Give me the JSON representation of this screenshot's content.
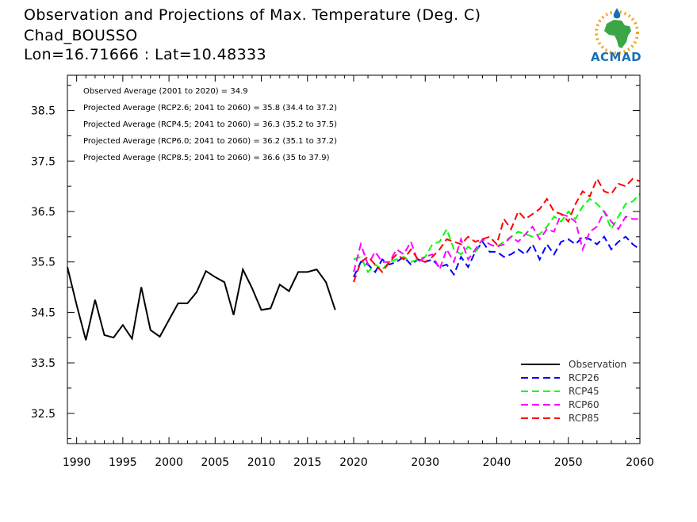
{
  "header": {
    "title_line1": "Observation and Projections of Max. Temperature (Deg. C)",
    "title_line2": "Chad_BOUSSO",
    "title_line3": "Lon=16.71666 : Lat=10.48333",
    "logo_text": "ACMAD"
  },
  "annotations": [
    "Observed Average (2001 to 2020) = 34.9",
    "Projected Average (RCP2.6; 2041 to 2060) = 35.8 (34.4 to 37.2)",
    "Projected Average (RCP4.5; 2041 to 2060) = 36.3 (35.2 to 37.5)",
    "Projected Average (RCP6.0; 2041 to 2060) = 36.2 (35.1 to 37.2)",
    "Projected Average (RCP8.5; 2041 to 2060) = 36.6 (35 to 37.9)"
  ],
  "chart_data": {
    "type": "line",
    "title": "Observation and Projections of Max. Temperature (Deg. C)",
    "xlim": [
      1989,
      2060
    ],
    "ylim": [
      31.9,
      39.2
    ],
    "x_ticks": [
      1990,
      1995,
      2000,
      2005,
      2010,
      2015,
      2020,
      2030,
      2040,
      2050,
      2060
    ],
    "y_ticks": [
      32.5,
      33.5,
      34.5,
      35.5,
      36.5,
      37.5,
      38.5
    ],
    "grid": false,
    "legend_position": "bottom-right",
    "series": [
      {
        "name": "Observation",
        "color": "#000000",
        "dashed": false,
        "x": [
          1989,
          1990,
          1991,
          1992,
          1993,
          1994,
          1995,
          1996,
          1997,
          1998,
          1999,
          2000,
          2001,
          2002,
          2003,
          2004,
          2005,
          2006,
          2007,
          2008,
          2009,
          2010,
          2011,
          2012,
          2013,
          2014,
          2015,
          2016,
          2017,
          2018,
          2019
        ],
        "values": [
          35.4,
          34.65,
          33.95,
          34.75,
          34.05,
          34.0,
          34.25,
          33.98,
          35.0,
          34.15,
          34.02,
          34.35,
          34.68,
          34.68,
          34.9,
          35.32,
          35.2,
          35.1,
          34.45,
          35.35,
          34.98,
          34.55,
          34.58,
          35.05,
          34.92,
          35.3,
          35.3,
          35.35,
          35.1,
          34.55,
          null
        ]
      },
      {
        "name": "RCP26",
        "color": "#0000ff",
        "dashed": true,
        "x": [
          2020,
          2021,
          2022,
          2023,
          2024,
          2025,
          2026,
          2027,
          2028,
          2029,
          2030,
          2031,
          2032,
          2033,
          2034,
          2035,
          2036,
          2037,
          2038,
          2039,
          2040,
          2041,
          2042,
          2043,
          2044,
          2045,
          2046,
          2047,
          2048,
          2049,
          2050,
          2051,
          2052,
          2053,
          2054,
          2055,
          2056,
          2057,
          2058,
          2059,
          2060
        ],
        "values": [
          35.2,
          35.5,
          35.45,
          35.3,
          35.55,
          35.45,
          35.5,
          35.6,
          35.45,
          35.55,
          35.5,
          35.55,
          35.4,
          35.45,
          35.25,
          35.6,
          35.4,
          35.7,
          35.9,
          35.7,
          35.7,
          35.6,
          35.65,
          35.75,
          35.65,
          35.85,
          35.55,
          35.85,
          35.65,
          35.9,
          35.95,
          35.85,
          36.0,
          35.95,
          35.85,
          36.0,
          35.75,
          35.9,
          36.0,
          35.85,
          35.75
        ]
      },
      {
        "name": "RCP45",
        "color": "#00ff00",
        "dashed": true,
        "x": [
          2020,
          2021,
          2022,
          2023,
          2024,
          2025,
          2026,
          2027,
          2028,
          2029,
          2030,
          2031,
          2032,
          2033,
          2034,
          2035,
          2036,
          2037,
          2038,
          2039,
          2040,
          2041,
          2042,
          2043,
          2044,
          2045,
          2046,
          2047,
          2048,
          2049,
          2050,
          2051,
          2052,
          2053,
          2054,
          2055,
          2056,
          2057,
          2058,
          2059,
          2060
        ],
        "values": [
          35.55,
          35.6,
          35.3,
          35.45,
          35.35,
          35.5,
          35.55,
          35.6,
          35.5,
          35.55,
          35.6,
          35.85,
          35.9,
          36.15,
          35.75,
          35.65,
          35.8,
          35.7,
          35.95,
          35.85,
          35.8,
          35.9,
          36.0,
          36.1,
          36.05,
          36.0,
          36.05,
          36.2,
          36.4,
          36.3,
          36.5,
          36.35,
          36.6,
          36.75,
          36.65,
          36.5,
          36.15,
          36.4,
          36.65,
          36.7,
          36.85
        ]
      },
      {
        "name": "RCP60",
        "color": "#ff00ff",
        "dashed": true,
        "x": [
          2020,
          2021,
          2022,
          2023,
          2024,
          2025,
          2026,
          2027,
          2028,
          2029,
          2030,
          2031,
          2032,
          2033,
          2034,
          2035,
          2036,
          2037,
          2038,
          2039,
          2040,
          2041,
          2042,
          2043,
          2044,
          2045,
          2046,
          2047,
          2048,
          2049,
          2050,
          2051,
          2052,
          2053,
          2054,
          2055,
          2056,
          2057,
          2058,
          2059,
          2060
        ],
        "values": [
          35.3,
          35.85,
          35.45,
          35.7,
          35.5,
          35.5,
          35.75,
          35.65,
          35.9,
          35.5,
          35.6,
          35.65,
          35.35,
          35.75,
          35.5,
          35.95,
          35.55,
          35.75,
          35.95,
          35.85,
          35.8,
          35.85,
          36.0,
          35.9,
          36.05,
          36.2,
          35.95,
          36.15,
          36.1,
          36.45,
          36.4,
          36.3,
          35.75,
          36.1,
          36.2,
          36.5,
          36.3,
          36.15,
          36.4,
          36.35,
          36.35
        ]
      },
      {
        "name": "RCP85",
        "color": "#ff0000",
        "dashed": true,
        "x": [
          2020,
          2021,
          2022,
          2023,
          2024,
          2025,
          2026,
          2027,
          2028,
          2029,
          2030,
          2031,
          2032,
          2033,
          2034,
          2035,
          2036,
          2037,
          2038,
          2039,
          2040,
          2041,
          2042,
          2043,
          2044,
          2045,
          2046,
          2047,
          2048,
          2049,
          2050,
          2051,
          2052,
          2053,
          2054,
          2055,
          2056,
          2057,
          2058,
          2059,
          2060
        ],
        "values": [
          35.1,
          35.5,
          35.6,
          35.45,
          35.3,
          35.5,
          35.65,
          35.55,
          35.75,
          35.55,
          35.5,
          35.6,
          35.75,
          35.95,
          35.9,
          35.85,
          36.0,
          35.9,
          35.95,
          36.0,
          35.85,
          36.35,
          36.15,
          36.5,
          36.35,
          36.45,
          36.55,
          36.75,
          36.5,
          36.45,
          36.3,
          36.65,
          36.9,
          36.8,
          37.15,
          36.9,
          36.85,
          37.05,
          37.0,
          37.15,
          37.1
        ]
      }
    ]
  }
}
